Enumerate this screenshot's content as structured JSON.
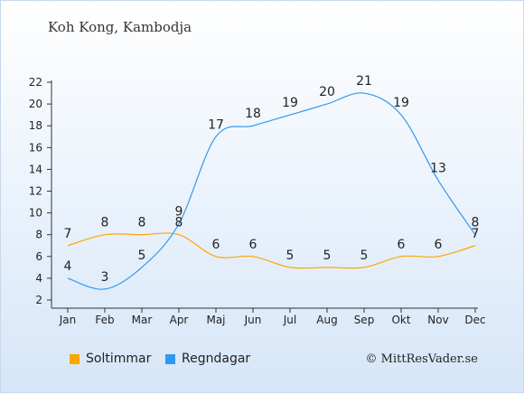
{
  "header": {
    "title": "Koh Kong, Kambodja"
  },
  "legend": {
    "sun_label": "Soltimmar",
    "rain_label": "Regndagar"
  },
  "footer": {
    "credit": "© MittResVader.se"
  },
  "colors": {
    "sun": "#ffa500",
    "rain": "#3399ee"
  },
  "chart_data": {
    "type": "line",
    "categories": [
      "Jan",
      "Feb",
      "Mar",
      "Apr",
      "Maj",
      "Jun",
      "Jul",
      "Aug",
      "Sep",
      "Okt",
      "Nov",
      "Dec"
    ],
    "series": [
      {
        "name": "Soltimmar",
        "values": [
          7,
          8,
          8,
          8,
          6,
          6,
          5,
          5,
          5,
          6,
          6,
          7
        ]
      },
      {
        "name": "Regndagar",
        "values": [
          4,
          3,
          5,
          9,
          17,
          18,
          19,
          20,
          21,
          19,
          13,
          8
        ]
      }
    ],
    "ylim": [
      2,
      22
    ],
    "yticks": [
      2,
      4,
      6,
      8,
      10,
      12,
      14,
      16,
      18,
      20,
      22
    ],
    "grid": false
  }
}
